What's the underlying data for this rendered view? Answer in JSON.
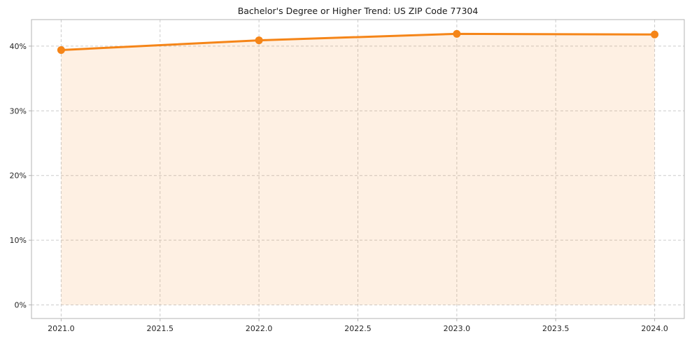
{
  "chart_data": {
    "type": "area",
    "title": "Bachelor's Degree or Higher Trend: US ZIP Code 77304",
    "x": [
      2021,
      2022,
      2023,
      2024
    ],
    "values": [
      39.4,
      40.9,
      41.9,
      41.8
    ],
    "xlabel": "",
    "ylabel": "",
    "xlim": [
      2020.85,
      2024.15
    ],
    "ylim": [
      -2.1,
      44.1
    ],
    "xticks": [
      2021.0,
      2021.5,
      2022.0,
      2022.5,
      2023.0,
      2023.5,
      2024.0
    ],
    "xtick_labels": [
      "2021.0",
      "2021.5",
      "2022.0",
      "2022.5",
      "2023.0",
      "2023.5",
      "2024.0"
    ],
    "yticks": [
      0,
      10,
      20,
      30,
      40
    ],
    "ytick_labels": [
      "0%",
      "10%",
      "20%",
      "30%",
      "40%"
    ],
    "grid": true,
    "grid_style": "dashed",
    "legend": "none",
    "line_color": "#f58518",
    "marker_color": "#f58518",
    "fill_color": "#f58518",
    "fill_opacity": 0.12,
    "grid_color": "#cccccc",
    "spine_color": "#b3b3b3",
    "tick_text_color": "#262626"
  }
}
